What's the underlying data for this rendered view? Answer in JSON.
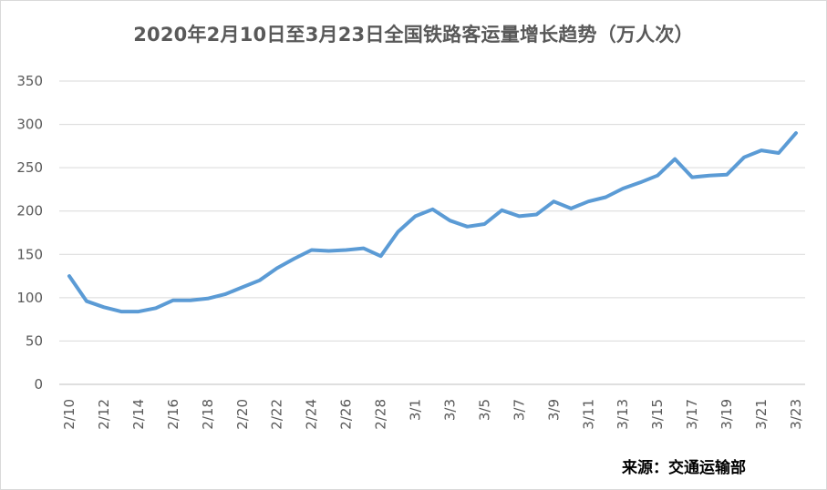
{
  "chart_data": {
    "type": "line",
    "title": "2020年2月10日至3月23日全国铁路客运量增长趋势（万人次）",
    "source": "来源：交通运输部",
    "x": [
      "2/10",
      "2/11",
      "2/12",
      "2/13",
      "2/14",
      "2/15",
      "2/16",
      "2/17",
      "2/18",
      "2/19",
      "2/20",
      "2/21",
      "2/22",
      "2/23",
      "2/24",
      "2/25",
      "2/26",
      "2/27",
      "2/28",
      "2/29",
      "3/1",
      "3/2",
      "3/3",
      "3/4",
      "3/5",
      "3/6",
      "3/7",
      "3/8",
      "3/9",
      "3/10",
      "3/11",
      "3/12",
      "3/13",
      "3/14",
      "3/15",
      "3/16",
      "3/17",
      "3/18",
      "3/19",
      "3/20",
      "3/21",
      "3/22",
      "3/23"
    ],
    "xtick_labels": [
      "2/10",
      "2/12",
      "2/14",
      "2/16",
      "2/18",
      "2/20",
      "2/22",
      "2/24",
      "2/26",
      "2/28",
      "3/1",
      "3/3",
      "3/5",
      "3/7",
      "3/9",
      "3/11",
      "3/13",
      "3/15",
      "3/17",
      "3/19",
      "3/21",
      "3/23"
    ],
    "series": [
      {
        "values": [
          125,
          96,
          89,
          84,
          84,
          88,
          97,
          97,
          99,
          104,
          112,
          120,
          134,
          145,
          155,
          154,
          155,
          157,
          148,
          176,
          194,
          202,
          189,
          182,
          185,
          201,
          194,
          196,
          211,
          203,
          211,
          216,
          226,
          233,
          241,
          260,
          239,
          241,
          242,
          262,
          270,
          267,
          290
        ],
        "color": "#5b9bd5"
      }
    ],
    "ylim": [
      0,
      350
    ],
    "yticks": [
      0,
      50,
      100,
      150,
      200,
      250,
      300,
      350
    ],
    "grid": true,
    "xlabel": "",
    "ylabel": ""
  }
}
